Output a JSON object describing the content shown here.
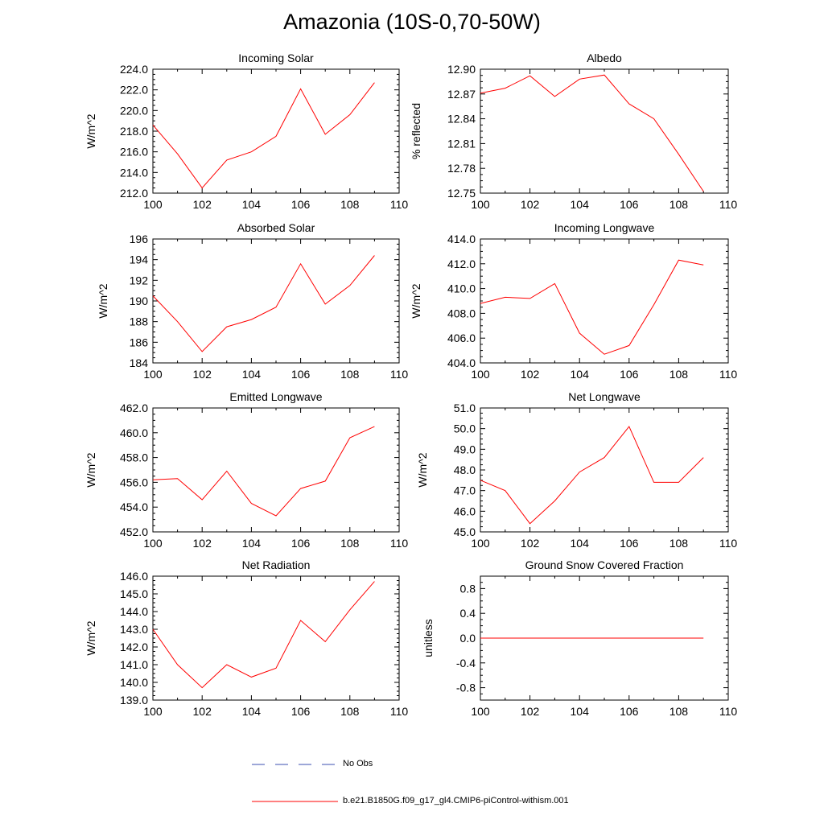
{
  "title": "Amazonia (10S-0,70-50W)",
  "colors": {
    "model_line": "#ff0000",
    "obs_line": "#3b4fb0",
    "axis": "#000000"
  },
  "legend": {
    "obs_label": "No Obs",
    "model_label": "b.e21.B1850G.f09_g17_gl4.CMIP6-piControl-withism.001"
  },
  "chart_data": [
    {
      "type": "line",
      "title": "Incoming Solar",
      "xlabel": "",
      "ylabel": "W/m^2",
      "x": [
        100,
        101,
        102,
        103,
        104,
        105,
        106,
        107,
        108,
        109
      ],
      "xlim": [
        100,
        110
      ],
      "xticks": [
        "100",
        "102",
        "104",
        "106",
        "108",
        "110"
      ],
      "ylim": [
        212.0,
        224.0
      ],
      "yticks": [
        "212.0",
        "214.0",
        "216.0",
        "218.0",
        "220.0",
        "222.0",
        "224.0"
      ],
      "series": [
        {
          "name": "b.e21.B1850G.f09_g17_gl4.CMIP6-piControl-withism.001",
          "values": [
            218.6,
            215.8,
            212.5,
            215.2,
            216.0,
            217.5,
            222.1,
            217.7,
            219.6,
            222.7
          ]
        }
      ]
    },
    {
      "type": "line",
      "title": "Albedo",
      "xlabel": "",
      "ylabel": "% reflected",
      "x": [
        100,
        101,
        102,
        103,
        104,
        105,
        106,
        107,
        108,
        109
      ],
      "xlim": [
        100,
        110
      ],
      "xticks": [
        "100",
        "102",
        "104",
        "106",
        "108",
        "110"
      ],
      "ylim": [
        12.75,
        12.9
      ],
      "yticks": [
        "12.75",
        "12.78",
        "12.81",
        "12.84",
        "12.87",
        "12.90"
      ],
      "series": [
        {
          "name": "b.e21.B1850G.f09_g17_gl4.CMIP6-piControl-withism.001",
          "values": [
            12.871,
            12.877,
            12.892,
            12.867,
            12.888,
            12.893,
            12.858,
            12.84,
            12.797,
            12.752
          ]
        }
      ]
    },
    {
      "type": "line",
      "title": "Absorbed Solar",
      "xlabel": "",
      "ylabel": "W/m^2",
      "x": [
        100,
        101,
        102,
        103,
        104,
        105,
        106,
        107,
        108,
        109
      ],
      "xlim": [
        100,
        110
      ],
      "xticks": [
        "100",
        "102",
        "104",
        "106",
        "108",
        "110"
      ],
      "ylim": [
        184,
        196
      ],
      "yticks": [
        "184",
        "186",
        "188",
        "190",
        "192",
        "194",
        "196"
      ],
      "series": [
        {
          "name": "b.e21.B1850G.f09_g17_gl4.CMIP6-piControl-withism.001",
          "values": [
            190.5,
            188.0,
            185.1,
            187.5,
            188.2,
            189.4,
            193.6,
            189.7,
            191.5,
            194.4
          ]
        }
      ]
    },
    {
      "type": "line",
      "title": "Incoming Longwave",
      "xlabel": "",
      "ylabel": "W/m^2",
      "x": [
        100,
        101,
        102,
        103,
        104,
        105,
        106,
        107,
        108,
        109
      ],
      "xlim": [
        100,
        110
      ],
      "xticks": [
        "100",
        "102",
        "104",
        "106",
        "108",
        "110"
      ],
      "ylim": [
        404.0,
        414.0
      ],
      "yticks": [
        "404.0",
        "406.0",
        "408.0",
        "410.0",
        "412.0",
        "414.0"
      ],
      "series": [
        {
          "name": "b.e21.B1850G.f09_g17_gl4.CMIP6-piControl-withism.001",
          "values": [
            408.8,
            409.3,
            409.2,
            410.4,
            406.4,
            404.7,
            405.4,
            408.7,
            412.3,
            411.9
          ]
        }
      ]
    },
    {
      "type": "line",
      "title": "Emitted Longwave",
      "xlabel": "",
      "ylabel": "W/m^2",
      "x": [
        100,
        101,
        102,
        103,
        104,
        105,
        106,
        107,
        108,
        109
      ],
      "xlim": [
        100,
        110
      ],
      "xticks": [
        "100",
        "102",
        "104",
        "106",
        "108",
        "110"
      ],
      "ylim": [
        452.0,
        462.0
      ],
      "yticks": [
        "452.0",
        "454.0",
        "456.0",
        "458.0",
        "460.0",
        "462.0"
      ],
      "series": [
        {
          "name": "b.e21.B1850G.f09_g17_gl4.CMIP6-piControl-withism.001",
          "values": [
            456.2,
            456.3,
            454.6,
            456.9,
            454.3,
            453.3,
            455.5,
            456.1,
            459.6,
            460.5
          ]
        }
      ]
    },
    {
      "type": "line",
      "title": "Net Longwave",
      "xlabel": "",
      "ylabel": "W/m^2",
      "x": [
        100,
        101,
        102,
        103,
        104,
        105,
        106,
        107,
        108,
        109
      ],
      "xlim": [
        100,
        110
      ],
      "xticks": [
        "100",
        "102",
        "104",
        "106",
        "108",
        "110"
      ],
      "ylim": [
        45.0,
        51.0
      ],
      "yticks": [
        "45.0",
        "46.0",
        "47.0",
        "48.0",
        "49.0",
        "50.0",
        "51.0"
      ],
      "series": [
        {
          "name": "b.e21.B1850G.f09_g17_gl4.CMIP6-piControl-withism.001",
          "values": [
            47.5,
            47.0,
            45.4,
            46.5,
            47.9,
            48.6,
            50.1,
            47.4,
            47.4,
            48.6
          ]
        }
      ]
    },
    {
      "type": "line",
      "title": "Net Radiation",
      "xlabel": "",
      "ylabel": "W/m^2",
      "x": [
        100,
        101,
        102,
        103,
        104,
        105,
        106,
        107,
        108,
        109
      ],
      "xlim": [
        100,
        110
      ],
      "xticks": [
        "100",
        "102",
        "104",
        "106",
        "108",
        "110"
      ],
      "ylim": [
        139.0,
        146.0
      ],
      "yticks": [
        "139.0",
        "140.0",
        "141.0",
        "142.0",
        "143.0",
        "144.0",
        "145.0",
        "146.0"
      ],
      "series": [
        {
          "name": "b.e21.B1850G.f09_g17_gl4.CMIP6-piControl-withism.001",
          "values": [
            143.0,
            141.0,
            139.7,
            141.0,
            140.3,
            140.8,
            143.5,
            142.3,
            144.1,
            145.7
          ]
        }
      ]
    },
    {
      "type": "line",
      "title": "Ground Snow Covered Fraction",
      "xlabel": "",
      "ylabel": "unitless",
      "x": [
        100,
        101,
        102,
        103,
        104,
        105,
        106,
        107,
        108,
        109
      ],
      "xlim": [
        100,
        110
      ],
      "xticks": [
        "100",
        "102",
        "104",
        "106",
        "108",
        "110"
      ],
      "ylim": [
        -1.0,
        1.0
      ],
      "yticks": [
        "-0.8",
        "-0.4",
        "0.0",
        "0.4",
        "0.8"
      ],
      "series": [
        {
          "name": "b.e21.B1850G.f09_g17_gl4.CMIP6-piControl-withism.001",
          "values": [
            0,
            0,
            0,
            0,
            0,
            0,
            0,
            0,
            0,
            0
          ]
        }
      ]
    }
  ]
}
